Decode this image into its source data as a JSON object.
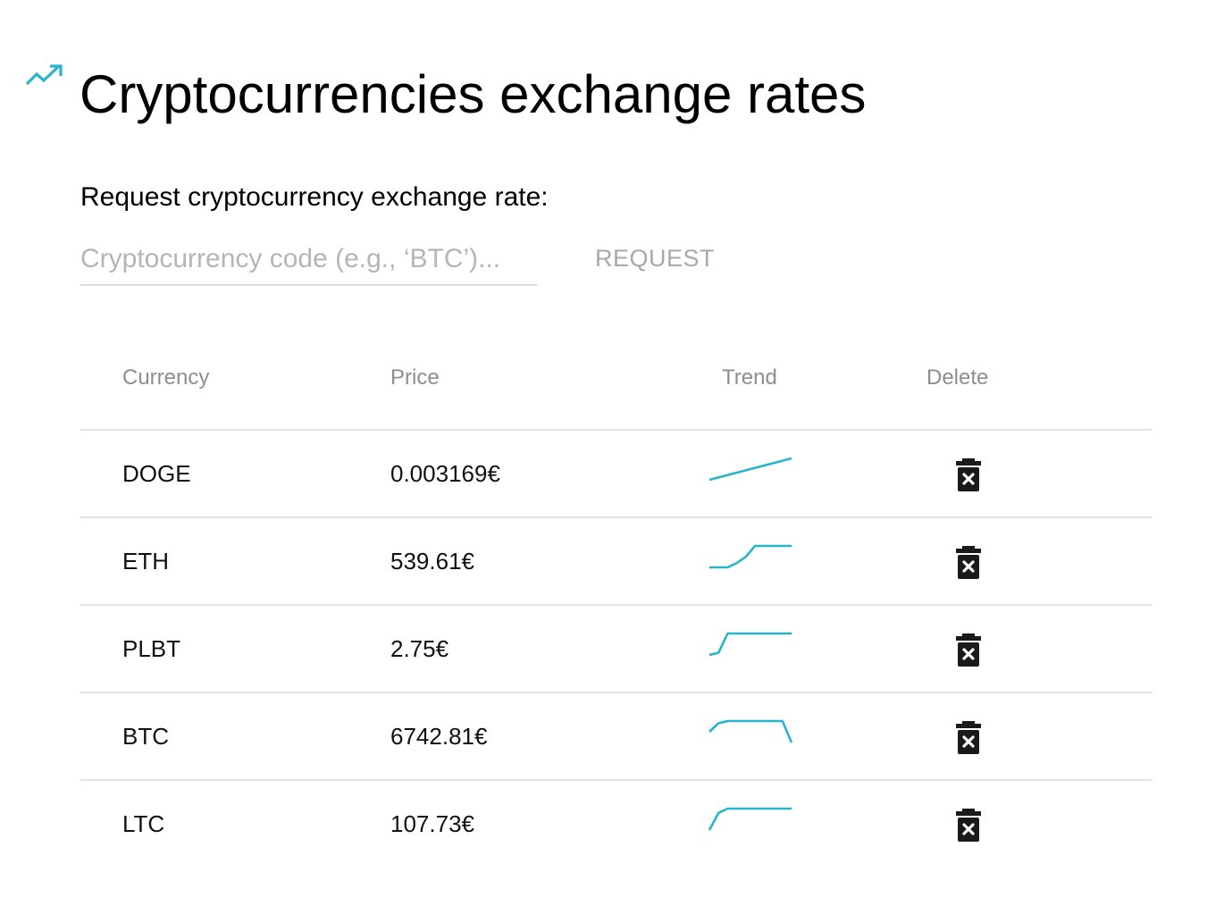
{
  "header": {
    "icon": "trending-up-icon",
    "title": "Cryptocurrencies exchange rates",
    "accent_color": "#26b5c9"
  },
  "request": {
    "label": "Request cryptocurrency exchange rate:",
    "input_value": "",
    "placeholder": "Cryptocurrency code (e.g., ‘BTC’)...",
    "button_label": "REQUEST"
  },
  "table": {
    "columns": [
      "Currency",
      "Price",
      "Trend",
      "Delete"
    ],
    "rows": [
      {
        "currency": "DOGE",
        "price": "0.003169€",
        "trend": [
          0,
          1
        ],
        "delete_icon": "trash-icon"
      },
      {
        "currency": "ETH",
        "price": "539.61€",
        "trend": [
          0,
          0,
          0,
          0.2,
          0.5,
          1,
          1,
          1,
          1,
          1
        ],
        "delete_icon": "trash-icon"
      },
      {
        "currency": "PLBT",
        "price": "2.75€",
        "trend": [
          0,
          0.1,
          1,
          1,
          1,
          1,
          1,
          1,
          1,
          1
        ],
        "delete_icon": "trash-icon"
      },
      {
        "currency": "BTC",
        "price": "6742.81€",
        "trend": [
          0.5,
          0.9,
          1,
          1,
          1,
          1,
          1,
          1,
          1,
          0
        ],
        "delete_icon": "trash-icon"
      },
      {
        "currency": "LTC",
        "price": "107.73€",
        "trend": [
          0,
          0.8,
          1,
          1,
          1,
          1,
          1,
          1,
          1,
          1
        ],
        "delete_icon": "trash-icon"
      }
    ]
  }
}
